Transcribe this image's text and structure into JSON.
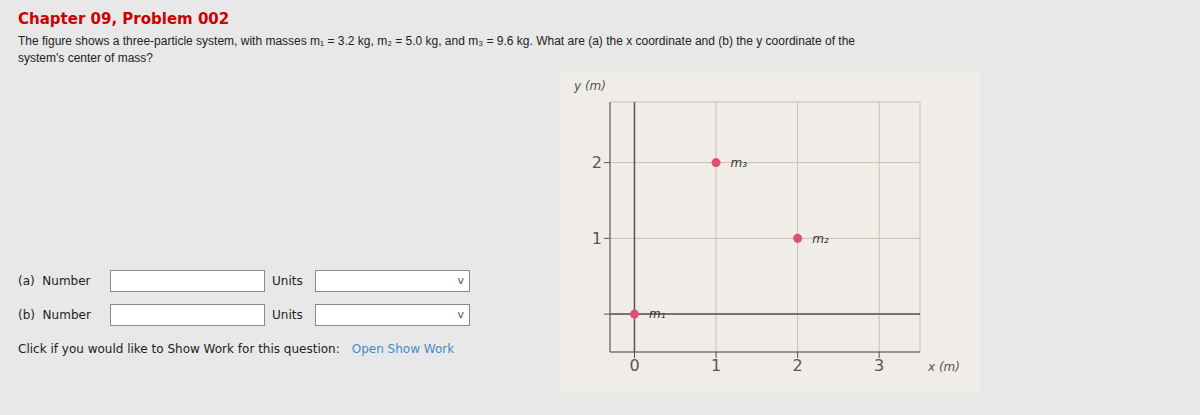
{
  "chart_data": {
    "type": "scatter",
    "title": "Chapter 09, Problem 002",
    "subtitle": [
      "The figure shows a three-particle system, with masses m₁ = 3.2 kg, m₂ = 5.0 kg, and m₃ = 9.6 kg. What are (a) the x coordinate and (b) the y coordinate of the",
      "system's center of mass?"
    ],
    "x": [
      0,
      2,
      1
    ],
    "values": [
      0,
      1,
      2
    ],
    "point_labels": [
      "m₁",
      "m₂",
      "m₃"
    ],
    "color": "#e05070",
    "xlim": [
      -0.3,
      3.5
    ],
    "xticks": [
      0,
      1,
      2,
      3
    ],
    "ylim": [
      -0.5,
      2.8
    ],
    "yticks": [
      {
        "value": 0,
        "label": ""
      },
      1,
      2
    ],
    "xlabel": "x (m)",
    "ylabel": "y (m)",
    "grid": true,
    "annotations": [
      "(a)  Number",
      "Units",
      "v",
      "(b)  Number",
      "Units",
      "v",
      "Click if you would like to Show Work for this question:",
      "Open Show Work"
    ]
  }
}
